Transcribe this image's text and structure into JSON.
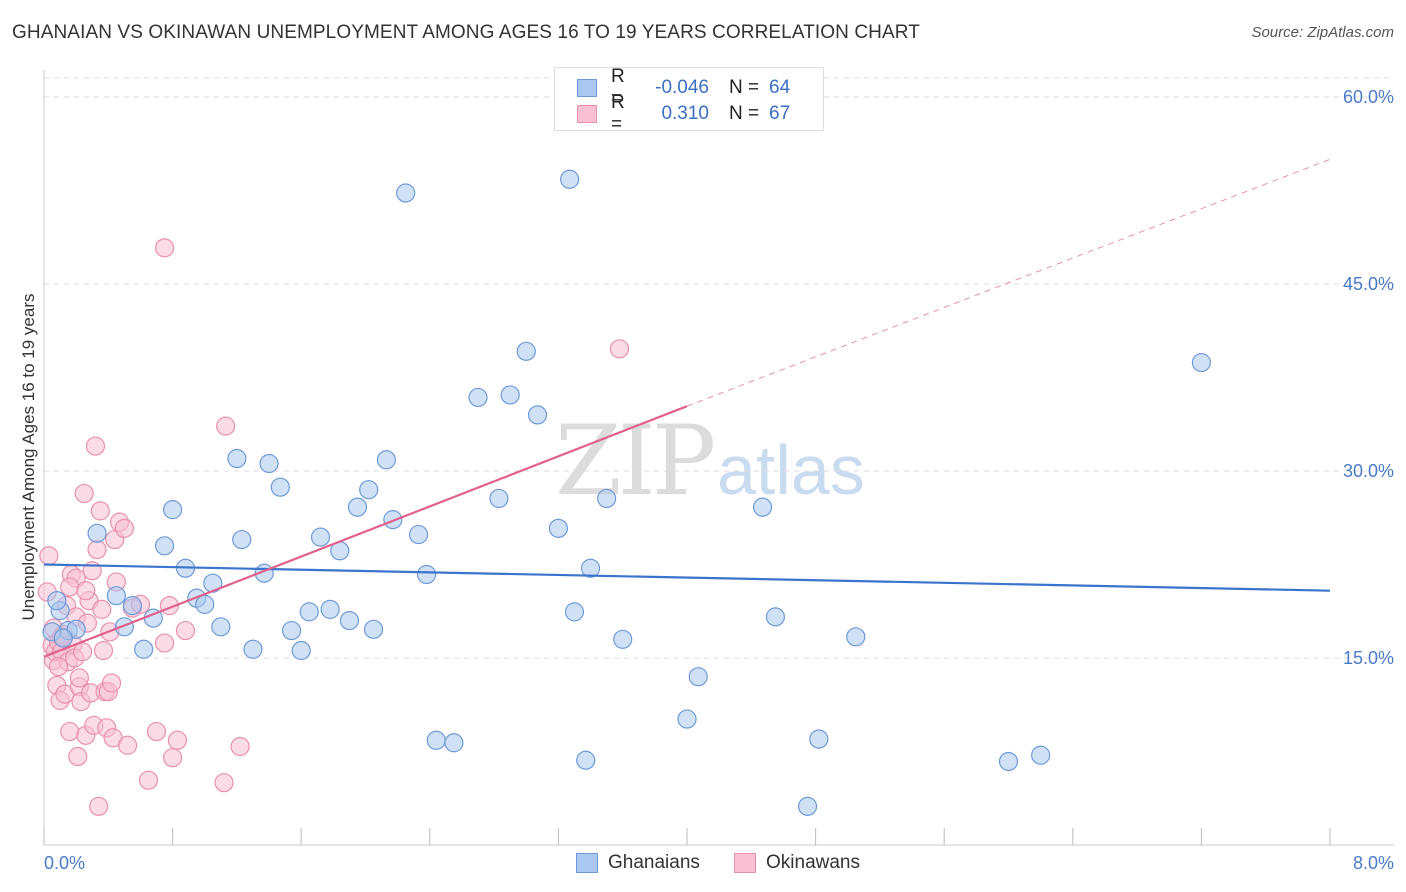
{
  "title": "GHANAIAN VS OKINAWAN UNEMPLOYMENT AMONG AGES 16 TO 19 YEARS CORRELATION CHART",
  "source": "Source: ZipAtlas.com",
  "watermark": {
    "zip": "ZIP",
    "atlas": "atlas"
  },
  "legend": {
    "ghanaians": {
      "r_label": "R =",
      "r_value": "-0.046",
      "n_label": "N =",
      "n_value": "64"
    },
    "okinawans": {
      "r_label": "R =",
      "r_value": "0.310",
      "n_label": "N =",
      "n_value": "67"
    }
  },
  "bottom_legend": {
    "ghanaians": "Ghanaians",
    "okinawans": "Okinawans"
  },
  "colors": {
    "ghanaians_fill": "#aac8ef",
    "ghanaians_stroke": "#6f9ad8",
    "ghanaians_line": "#3a74cc",
    "okinawans_fill": "#f8c0d2",
    "okinawans_stroke": "#e891ad",
    "okinawans_line": "#e0628c",
    "tick_label": "#4a7bc8"
  },
  "chart_data": {
    "type": "scatter",
    "title": "GHANAIAN VS OKINAWAN UNEMPLOYMENT AMONG AGES 16 TO 19 YEARS CORRELATION CHART",
    "xlabel": "",
    "ylabel": "Unemployment Among Ages 16 to 19 years",
    "xlim": [
      0,
      8
    ],
    "ylim": [
      0,
      60
    ],
    "y_ticks": [
      15,
      30,
      45,
      60
    ],
    "y_tick_labels": [
      "15.0%",
      "30.0%",
      "45.0%",
      "60.0%"
    ],
    "x_tick_labels": [
      "0.0%",
      "8.0%"
    ],
    "grid": true,
    "series": [
      {
        "name": "Ghanaians",
        "r": -0.046,
        "n": 64,
        "trend": {
          "x": [
            0,
            8
          ],
          "y": [
            22.5,
            20.4
          ]
        },
        "points": [
          [
            0.1,
            18.8
          ],
          [
            0.15,
            17.2
          ],
          [
            0.33,
            25.0
          ],
          [
            0.45,
            20.0
          ],
          [
            0.5,
            17.5
          ],
          [
            0.55,
            19.2
          ],
          [
            0.62,
            15.7
          ],
          [
            0.68,
            18.2
          ],
          [
            0.75,
            24.0
          ],
          [
            0.8,
            26.9
          ],
          [
            0.88,
            22.2
          ],
          [
            0.95,
            19.8
          ],
          [
            1.0,
            19.3
          ],
          [
            1.05,
            21.0
          ],
          [
            1.1,
            17.5
          ],
          [
            1.2,
            31.0
          ],
          [
            1.23,
            24.5
          ],
          [
            1.3,
            15.7
          ],
          [
            1.37,
            21.8
          ],
          [
            1.4,
            30.6
          ],
          [
            1.47,
            28.7
          ],
          [
            1.54,
            17.2
          ],
          [
            1.6,
            15.6
          ],
          [
            1.65,
            18.7
          ],
          [
            1.72,
            24.7
          ],
          [
            1.78,
            18.9
          ],
          [
            1.84,
            23.6
          ],
          [
            1.9,
            18.0
          ],
          [
            1.95,
            27.1
          ],
          [
            2.02,
            28.5
          ],
          [
            2.05,
            17.3
          ],
          [
            2.13,
            30.9
          ],
          [
            2.17,
            26.1
          ],
          [
            2.25,
            52.3
          ],
          [
            2.33,
            24.9
          ],
          [
            2.38,
            21.7
          ],
          [
            2.44,
            8.4
          ],
          [
            2.55,
            8.2
          ],
          [
            2.7,
            35.9
          ],
          [
            2.83,
            27.8
          ],
          [
            2.9,
            36.1
          ],
          [
            3.0,
            39.6
          ],
          [
            3.07,
            34.5
          ],
          [
            3.2,
            25.4
          ],
          [
            3.27,
            53.4
          ],
          [
            3.3,
            18.7
          ],
          [
            3.37,
            6.8
          ],
          [
            3.4,
            22.2
          ],
          [
            3.5,
            27.8
          ],
          [
            3.6,
            16.5
          ],
          [
            4.0,
            10.1
          ],
          [
            4.07,
            13.5
          ],
          [
            4.47,
            27.1
          ],
          [
            4.55,
            18.3
          ],
          [
            4.75,
            3.1
          ],
          [
            4.82,
            8.5
          ],
          [
            5.05,
            16.7
          ],
          [
            6.0,
            6.7
          ],
          [
            6.2,
            7.2
          ],
          [
            7.2,
            38.7
          ],
          [
            0.05,
            17.1
          ],
          [
            0.08,
            19.6
          ],
          [
            0.2,
            17.3
          ],
          [
            0.12,
            16.6
          ]
        ]
      },
      {
        "name": "Okinawans",
        "r": 0.31,
        "n": 67,
        "trend": {
          "x": [
            0,
            4.0
          ],
          "y": [
            15.1,
            35.2
          ]
        },
        "trend_dashed": {
          "x": [
            4.0,
            8.0
          ],
          "y": [
            35.2,
            55.0
          ]
        },
        "points": [
          [
            0.02,
            20.3
          ],
          [
            0.03,
            23.2
          ],
          [
            0.05,
            16.0
          ],
          [
            0.06,
            14.8
          ],
          [
            0.07,
            15.5
          ],
          [
            0.08,
            12.8
          ],
          [
            0.09,
            16.3
          ],
          [
            0.1,
            11.6
          ],
          [
            0.11,
            15.5
          ],
          [
            0.12,
            16.9
          ],
          [
            0.13,
            12.1
          ],
          [
            0.14,
            19.2
          ],
          [
            0.15,
            14.7
          ],
          [
            0.16,
            9.1
          ],
          [
            0.17,
            21.7
          ],
          [
            0.18,
            16.1
          ],
          [
            0.19,
            15.0
          ],
          [
            0.2,
            18.3
          ],
          [
            0.21,
            7.1
          ],
          [
            0.22,
            12.7
          ],
          [
            0.23,
            11.5
          ],
          [
            0.24,
            15.5
          ],
          [
            0.25,
            28.2
          ],
          [
            0.26,
            8.8
          ],
          [
            0.27,
            17.8
          ],
          [
            0.28,
            19.6
          ],
          [
            0.29,
            12.2
          ],
          [
            0.3,
            22.0
          ],
          [
            0.31,
            9.6
          ],
          [
            0.32,
            32.0
          ],
          [
            0.33,
            23.7
          ],
          [
            0.34,
            3.1
          ],
          [
            0.35,
            26.8
          ],
          [
            0.36,
            18.9
          ],
          [
            0.37,
            15.6
          ],
          [
            0.38,
            12.3
          ],
          [
            0.39,
            9.4
          ],
          [
            0.4,
            12.3
          ],
          [
            0.41,
            17.1
          ],
          [
            0.42,
            13.0
          ],
          [
            0.43,
            8.6
          ],
          [
            0.44,
            24.5
          ],
          [
            0.45,
            21.1
          ],
          [
            0.47,
            25.9
          ],
          [
            0.5,
            25.4
          ],
          [
            0.52,
            8.0
          ],
          [
            0.55,
            19.0
          ],
          [
            0.6,
            19.3
          ],
          [
            0.65,
            5.2
          ],
          [
            0.7,
            9.1
          ],
          [
            0.75,
            16.2
          ],
          [
            0.78,
            19.2
          ],
          [
            0.8,
            7.0
          ],
          [
            0.83,
            8.4
          ],
          [
            0.88,
            17.2
          ],
          [
            0.75,
            47.9
          ],
          [
            1.12,
            5.0
          ],
          [
            1.13,
            33.6
          ],
          [
            1.22,
            7.9
          ],
          [
            0.2,
            21.4
          ],
          [
            3.58,
            39.8
          ],
          [
            0.06,
            17.4
          ],
          [
            0.09,
            14.3
          ],
          [
            0.16,
            20.7
          ],
          [
            0.11,
            16.7
          ],
          [
            0.22,
            13.4
          ],
          [
            0.26,
            20.4
          ]
        ]
      }
    ]
  }
}
